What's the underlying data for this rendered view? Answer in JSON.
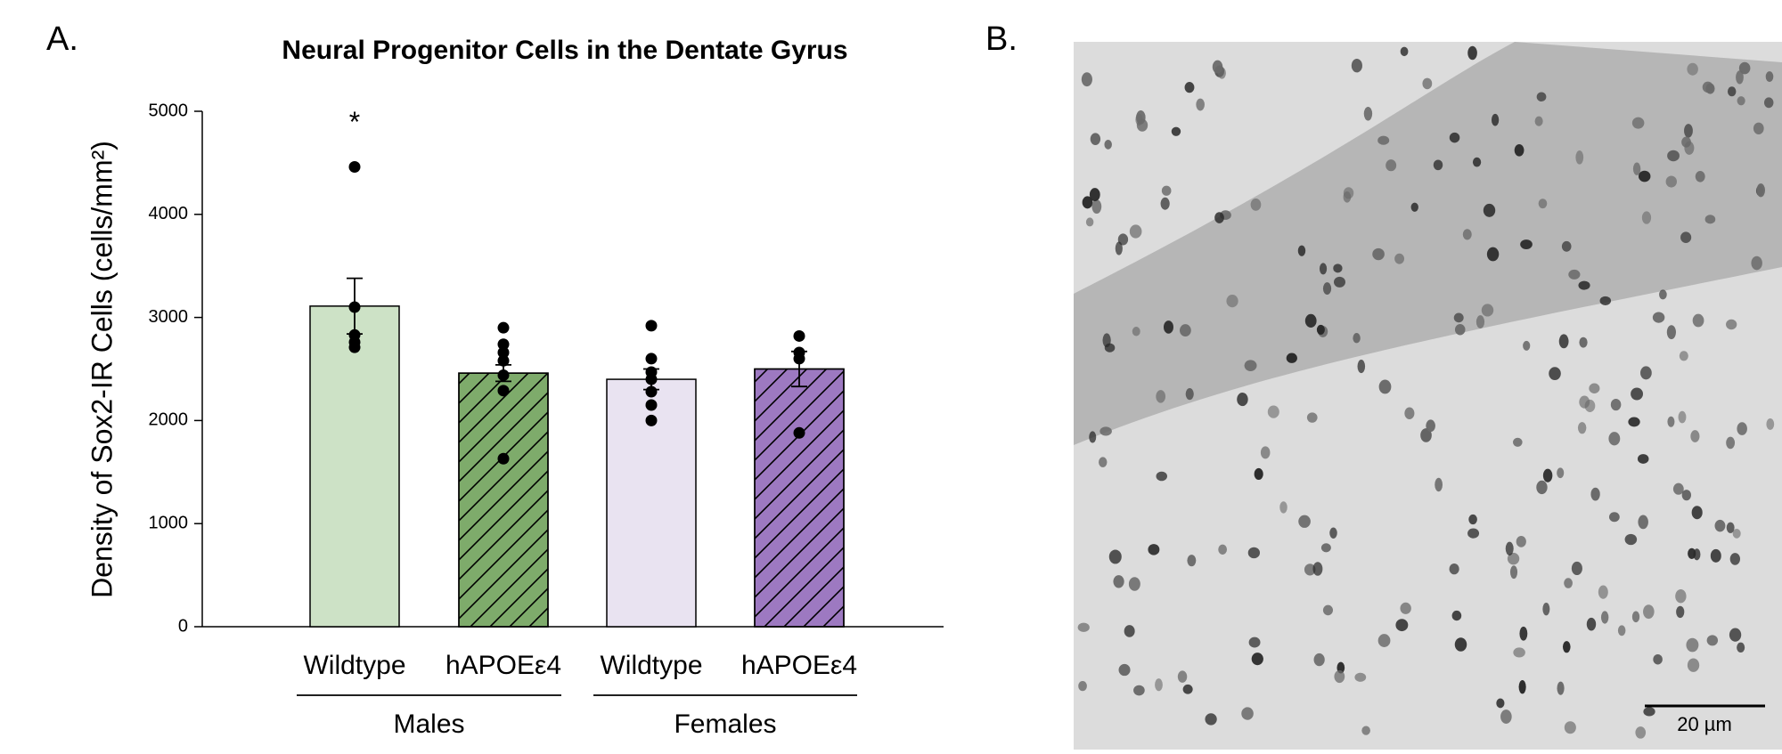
{
  "panel_labels": [
    "A.",
    "B."
  ],
  "chart_data": {
    "type": "bar",
    "title": "Neural Progenitor Cells in the Dentate Gyrus",
    "y_label": "Density of Sox2-IR Cells (cells/mm²)",
    "categories": [
      "Wildtype",
      "hAPOEε4",
      "Wildtype",
      "hAPOEε4"
    ],
    "groups": [
      "Males",
      "Males",
      "Females",
      "Females"
    ],
    "colors": [
      "#cde2c6",
      "#7eab6b",
      "#e9e3f1",
      "#9d79c1"
    ],
    "hatched": [
      false,
      true,
      false,
      true
    ],
    "series": [
      {
        "values": [
          3110,
          2460,
          2400,
          2500
        ],
        "errors": [
          270,
          80,
          100,
          170
        ],
        "points": [
          [
            4460,
            3100,
            2830,
            2760,
            2710
          ],
          [
            2900,
            2740,
            2660,
            2580,
            2440,
            2290,
            1630
          ],
          [
            2920,
            2600,
            2470,
            2400,
            2280,
            2150,
            2000
          ],
          [
            2820,
            2660,
            2600,
            1880
          ]
        ]
      }
    ],
    "significance": [
      "*",
      null,
      null,
      null
    ],
    "ylim": [
      0,
      5000
    ],
    "yticks": [
      0,
      1000,
      2000,
      3000,
      4000,
      5000
    ]
  },
  "micrograph": {
    "scale_bar": "20 µm"
  }
}
